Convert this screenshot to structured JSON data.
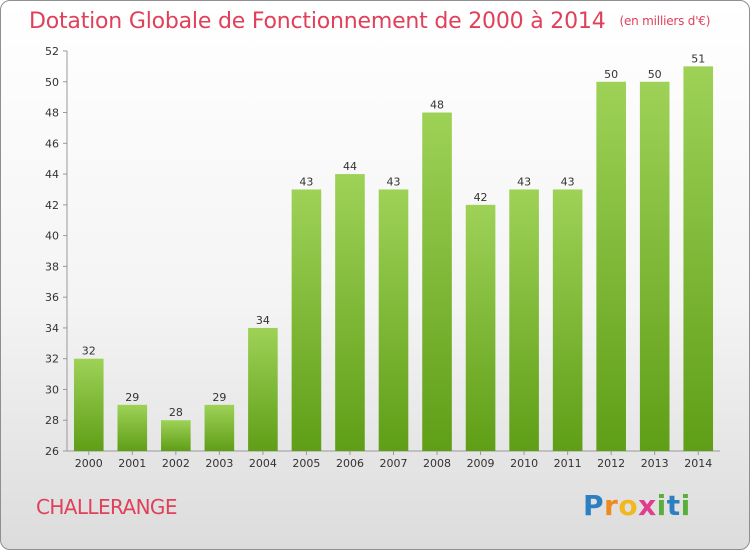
{
  "header": {
    "title": "Dotation Globale de Fonctionnement de 2000 à 2014",
    "unit_note": "(en milliers d'€)"
  },
  "footer": {
    "town": "CHALLERANGE",
    "logo_text": "Proxiti"
  },
  "colors": {
    "accent": "#e0405a",
    "bar_top": "#9ed257",
    "bar_bottom": "#5f9e17"
  },
  "chart_data": {
    "type": "bar",
    "title": "Dotation Globale de Fonctionnement de 2000 à 2014",
    "subtitle": "(en milliers d'€)",
    "xlabel": "",
    "ylabel": "",
    "categories": [
      "2000",
      "2001",
      "2002",
      "2003",
      "2004",
      "2005",
      "2006",
      "2007",
      "2008",
      "2009",
      "2010",
      "2011",
      "2012",
      "2013",
      "2014"
    ],
    "values": [
      32,
      29,
      28,
      29,
      34,
      43,
      44,
      43,
      48,
      42,
      43,
      43,
      50,
      50,
      51
    ],
    "ylim": [
      26,
      52
    ],
    "yticks": [
      26,
      28,
      30,
      32,
      34,
      36,
      38,
      40,
      42,
      44,
      46,
      48,
      50,
      52
    ],
    "grid": false,
    "legend": "none"
  }
}
